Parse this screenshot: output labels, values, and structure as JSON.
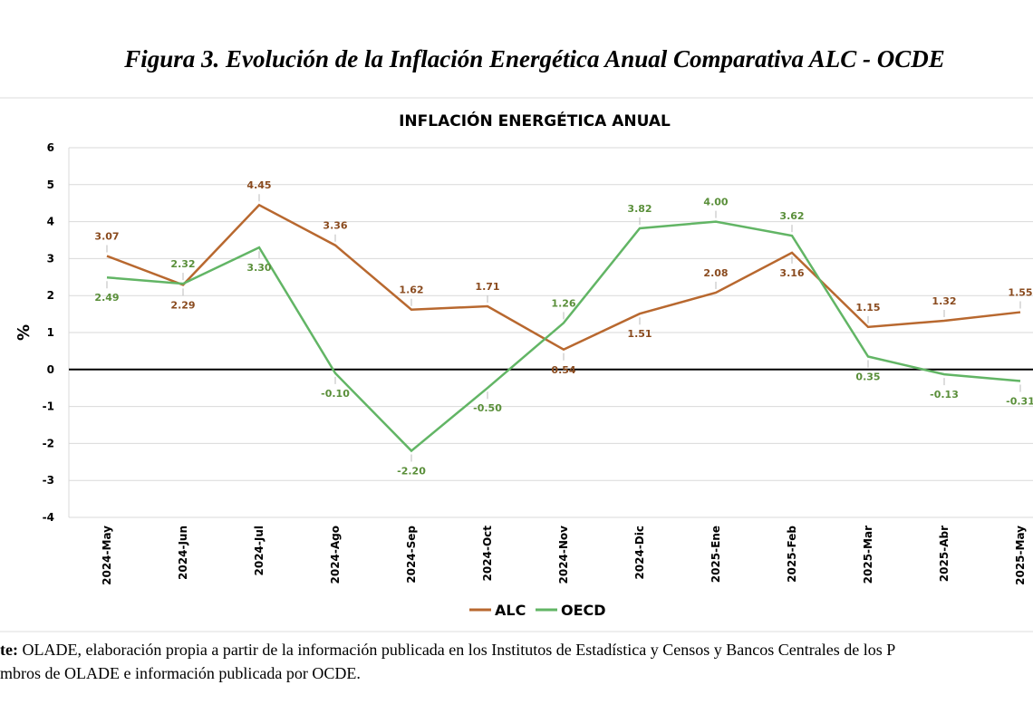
{
  "figure_caption": "Figura 3. Evolución de la Inflación Energética Anual Comparativa ALC - OCDE",
  "chart_data": {
    "type": "line",
    "title": "INFLACIÓN ENERGÉTICA ANUAL",
    "ylabel": "%",
    "categories": [
      "2024-May",
      "2024-Jun",
      "2024-Jul",
      "2024-Ago",
      "2024-Sep",
      "2024-Oct",
      "2024-Nov",
      "2024-Dic",
      "2025-Ene",
      "2025-Feb",
      "2025-Mar",
      "2025-Abr",
      "2025-May"
    ],
    "series": [
      {
        "name": "ALC",
        "color": "#b8682f",
        "label_color": "#8a4b1f",
        "values": [
          3.07,
          2.29,
          4.45,
          3.36,
          1.62,
          1.71,
          0.54,
          1.51,
          2.08,
          3.16,
          1.15,
          1.32,
          1.55
        ],
        "value_labels": [
          "3.07",
          "2.29",
          "4.45",
          "3.36",
          "1.62",
          "1.71",
          "0.54",
          "1.51",
          "2.08",
          "3.16",
          "1.15",
          "1.32",
          "1.55"
        ]
      },
      {
        "name": "OECD",
        "color": "#62b565",
        "label_color": "#5a8f3a",
        "values": [
          2.49,
          2.32,
          3.3,
          -0.1,
          -2.2,
          -0.5,
          1.26,
          3.82,
          4.0,
          3.62,
          0.35,
          -0.13,
          -0.31
        ],
        "value_labels": [
          "2.49",
          "2.32",
          "3.30",
          "-0.10",
          "-2.20",
          "-0.50",
          "1.26",
          "3.82",
          "4.00",
          "3.62",
          "0.35",
          "-0.13",
          "-0.31"
        ]
      }
    ],
    "ylim": [
      -4,
      6
    ],
    "yticks": [
      -4,
      -3,
      -2,
      -1,
      0,
      1,
      2,
      3,
      4,
      5,
      6
    ],
    "grid": true,
    "legend": "bottom"
  },
  "source": {
    "bold": "te:",
    "line1": "OLADE, elaboración propia a partir de la información publicada en los Institutos de Estadística y Censos y Bancos Centrales de los P",
    "line2": "mbros de OLADE e información publicada por OCDE."
  }
}
